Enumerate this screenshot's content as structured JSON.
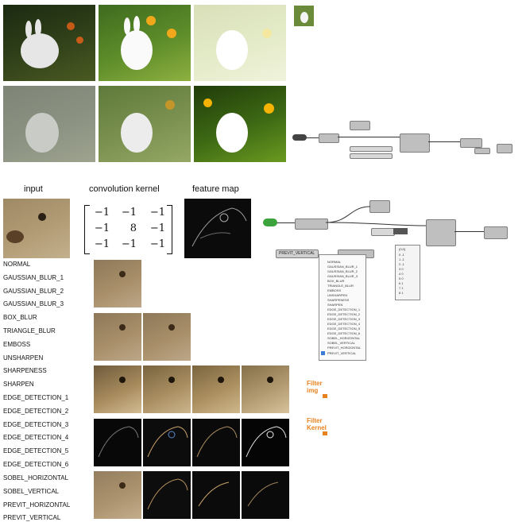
{
  "headers": {
    "input": "input",
    "kernel": "convolution kernel",
    "feature": "feature map"
  },
  "kernel": [
    [
      "−1",
      "−1",
      "−1"
    ],
    [
      "−1",
      "8",
      "−1"
    ],
    [
      "−1",
      "−1",
      "−1"
    ]
  ],
  "filter_list": [
    "NORMAL",
    "GAUSSIAN_BLUR_1",
    "GAUSSIAN_BLUR_2",
    "GAUSSIAN_BLUR_3",
    "BOX_BLUR",
    "TRIANGLE_BLUR",
    "EMBOSS",
    "UNSHARPEN",
    "SHARPENESS",
    "SHARPEN",
    "EDGE_DETECTION_1",
    "EDGE_DETECTION_2",
    "EDGE_DETECTION_3",
    "EDGE_DETECTION_4",
    "EDGE_DETECTION_5",
    "EDGE_DETECTION_6",
    "SOBEL_HORIZONTAL",
    "SOBEL_VERTICAL",
    "PREVIT_HORIZONTAL",
    "PREVIT_VERTICAL"
  ],
  "gh": {
    "value_list_label": "PREVIT_VERTICAL",
    "panel_rows": [
      "{0;0}",
      "0 -1",
      "1 -1",
      "2 -1",
      "3 0",
      "4 0",
      "5 0",
      "6 1",
      "7 1",
      "8 1"
    ],
    "dropdown_items": [
      "NORMAL",
      "GAUSSIAN_BLUR_1",
      "GAUSSIAN_BLUR_2",
      "GAUSSIAN_BLUR_3",
      "BOX_BLUR",
      "TRIANGLE_BLUR",
      "EMBOSS",
      "UNSHARPEN",
      "SHARPENESS",
      "SHARPEN",
      "EDGE_DETECTION_1",
      "EDGE_DETECTION_2",
      "EDGE_DETECTION_3",
      "EDGE_DETECTION_4",
      "EDGE_DETECTION_5",
      "EDGE_DETECTION_6",
      "SOBEL_HORIZONTAL",
      "SOBEL_VERTICAL",
      "PREVIT_HORIZONTAL",
      "PREVIT_VERTICAL"
    ],
    "icons": [
      {
        "title": "Filter",
        "sub": "img"
      },
      {
        "title": "Filter",
        "sub": "Kernel"
      }
    ]
  },
  "colors": {
    "accent_orange": "#e8821e",
    "gh_component": "#bfbfbf"
  }
}
